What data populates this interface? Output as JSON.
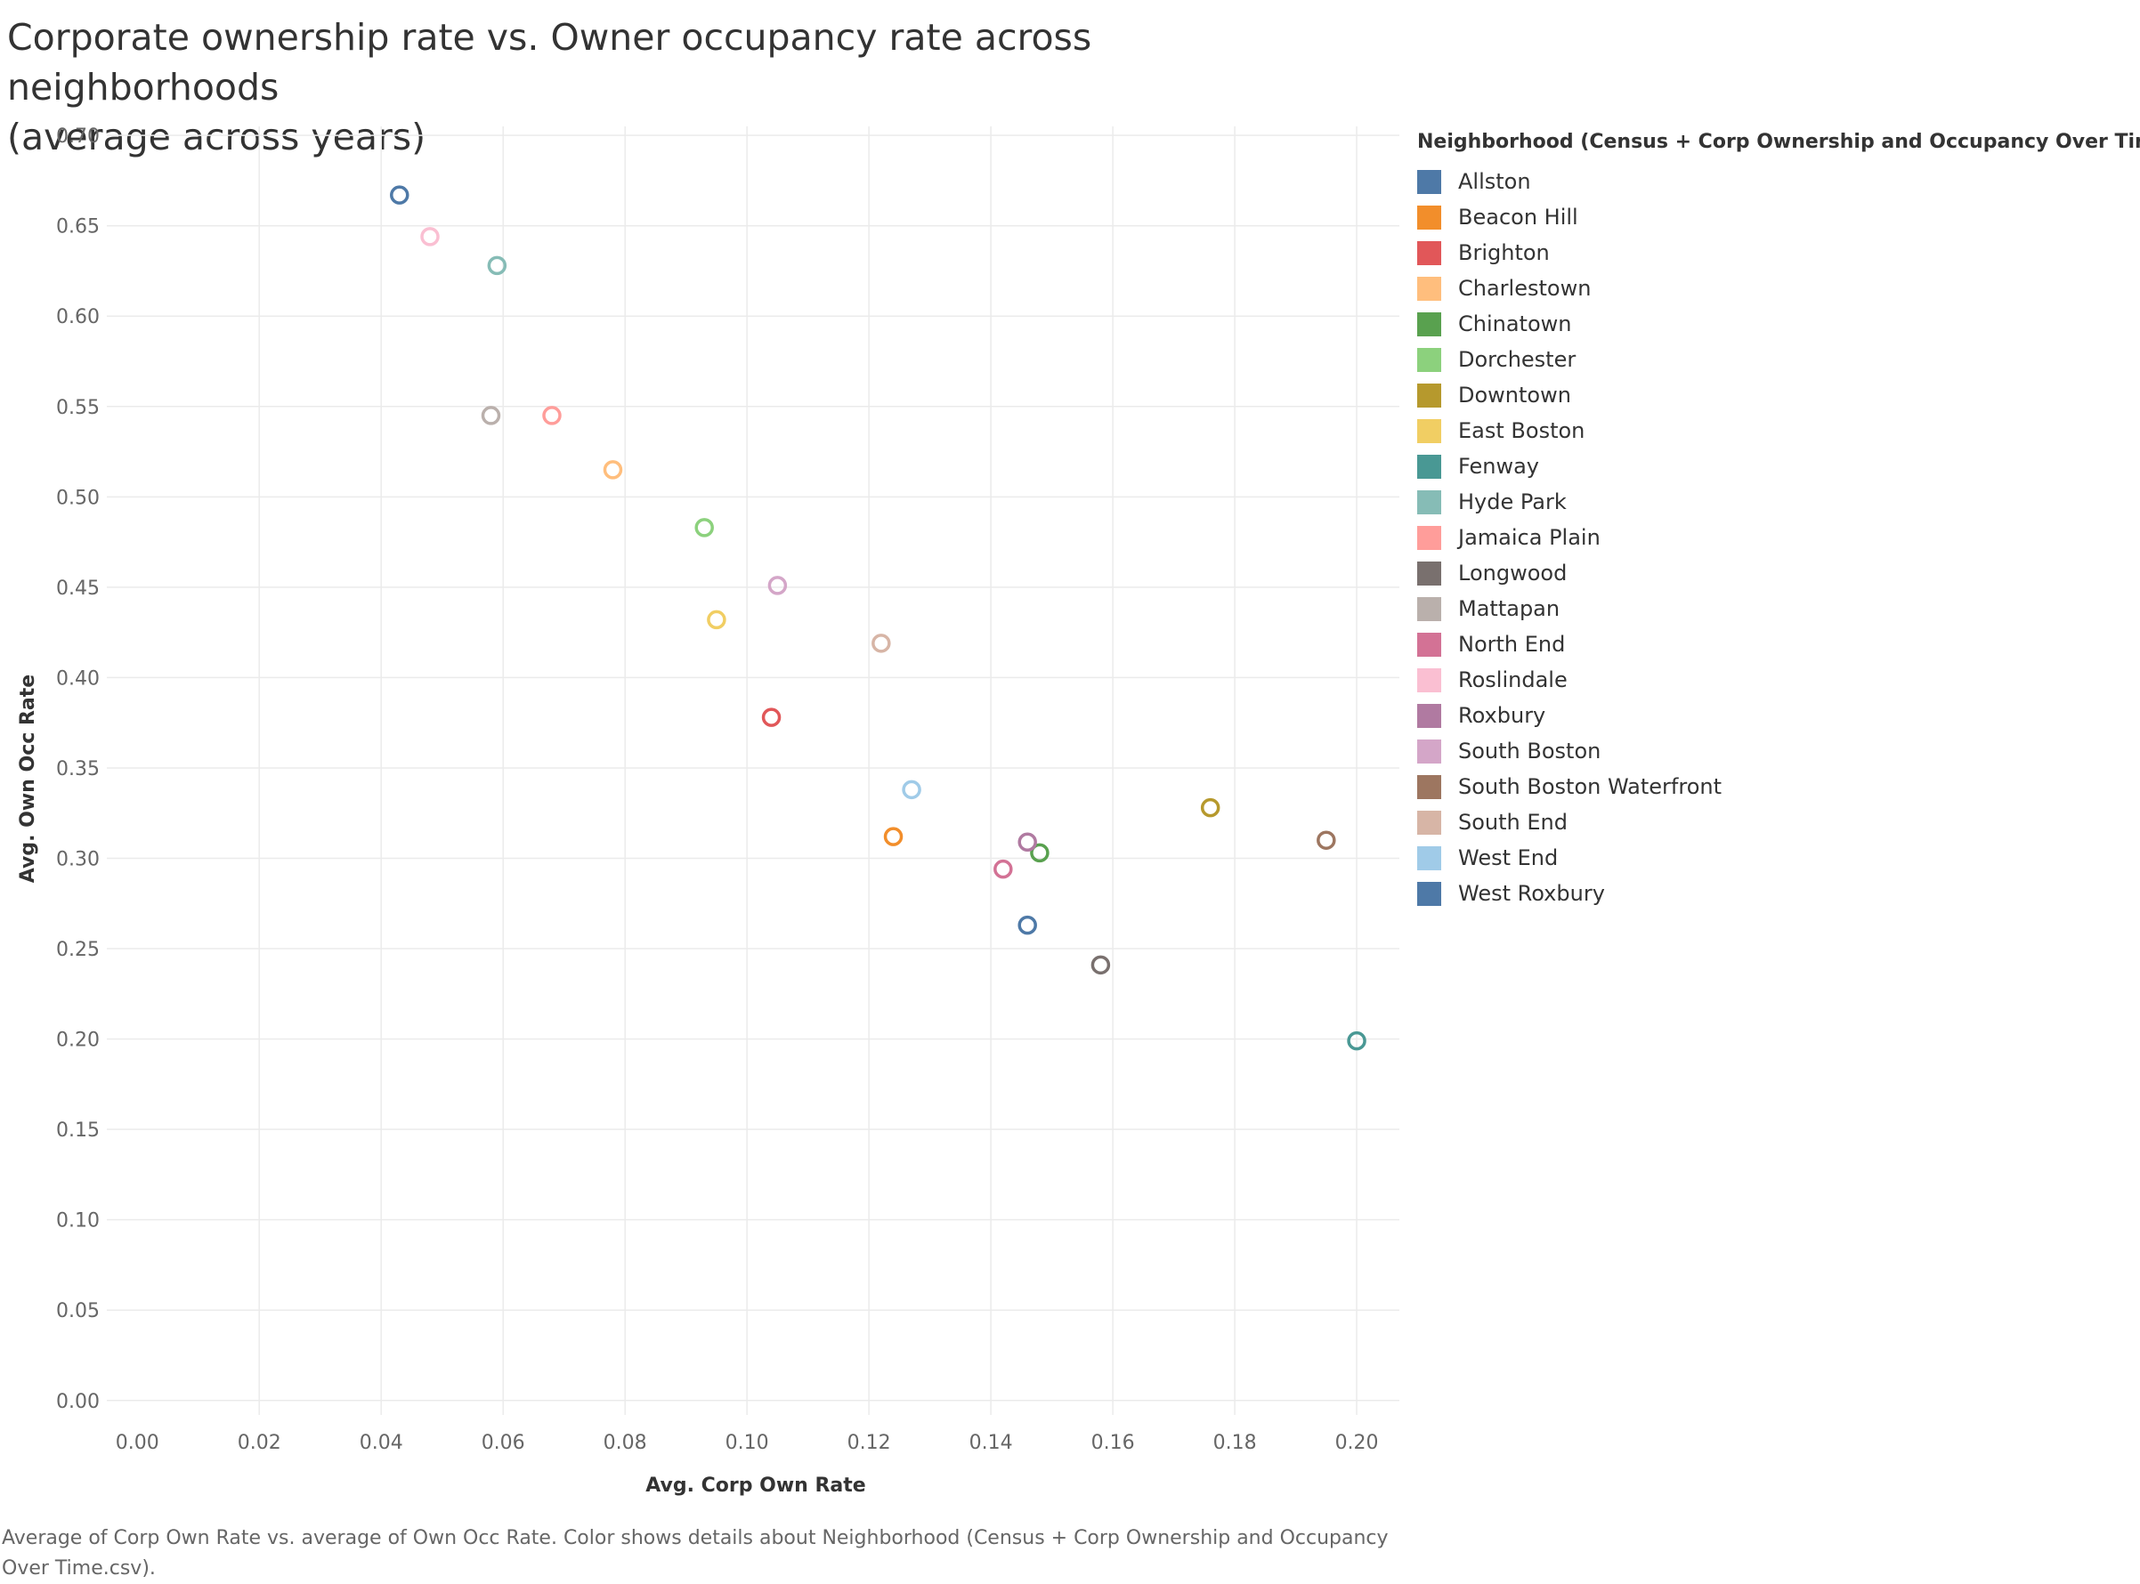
{
  "title_lines": [
    "Corporate ownership rate vs. Owner occupancy rate across neighborhoods",
    "(average across years)"
  ],
  "caption": "Average of Corp Own Rate vs. average of Own Occ Rate.  Color shows details about Neighborhood (Census + Corp Ownership and Occupancy Over Time.csv).",
  "chart_data": {
    "type": "scatter",
    "title": "Corporate ownership rate vs. Owner occupancy rate across neighborhoods (average across years)",
    "xlabel": "Avg. Corp Own Rate",
    "ylabel": "Avg. Own Occ Rate",
    "xlim": [
      -0.005,
      0.207
    ],
    "ylim": [
      -0.008,
      0.705
    ],
    "x_ticks": [
      "0.00",
      "0.02",
      "0.04",
      "0.06",
      "0.08",
      "0.10",
      "0.12",
      "0.14",
      "0.16",
      "0.18",
      "0.20"
    ],
    "y_ticks": [
      "0.00",
      "0.05",
      "0.10",
      "0.15",
      "0.20",
      "0.25",
      "0.30",
      "0.35",
      "0.40",
      "0.45",
      "0.50",
      "0.55",
      "0.60",
      "0.65",
      "0.70"
    ],
    "grid": true,
    "legend_title": "Neighborhood (Census + Corp Ownership and Occupancy Over Time.csv)",
    "legend_position": "right",
    "marker": "hollow-circle",
    "series": [
      {
        "name": "Allston",
        "color": "#4e79a7",
        "x": 0.146,
        "y": 0.263
      },
      {
        "name": "Beacon Hill",
        "color": "#f28e2b",
        "x": 0.124,
        "y": 0.312
      },
      {
        "name": "Brighton",
        "color": "#e15759",
        "x": 0.104,
        "y": 0.378
      },
      {
        "name": "Charlestown",
        "color": "#ffbe7d",
        "x": 0.078,
        "y": 0.515
      },
      {
        "name": "Chinatown",
        "color": "#59a14f",
        "x": 0.148,
        "y": 0.303
      },
      {
        "name": "Dorchester",
        "color": "#8cd17d",
        "x": 0.093,
        "y": 0.483
      },
      {
        "name": "Downtown",
        "color": "#b6992d",
        "x": 0.176,
        "y": 0.328
      },
      {
        "name": "East Boston",
        "color": "#f1ce63",
        "x": 0.095,
        "y": 0.432
      },
      {
        "name": "Fenway",
        "color": "#499894",
        "x": 0.2,
        "y": 0.199
      },
      {
        "name": "Hyde Park",
        "color": "#86bcb6",
        "x": 0.059,
        "y": 0.628
      },
      {
        "name": "Jamaica Plain",
        "color": "#ff9d9a",
        "x": 0.068,
        "y": 0.545
      },
      {
        "name": "Longwood",
        "color": "#79706e",
        "x": 0.158,
        "y": 0.241
      },
      {
        "name": "Mattapan",
        "color": "#bab0ac",
        "x": 0.058,
        "y": 0.545
      },
      {
        "name": "North End",
        "color": "#d37295",
        "x": 0.142,
        "y": 0.294
      },
      {
        "name": "Roslindale",
        "color": "#fabfd2",
        "x": 0.048,
        "y": 0.644
      },
      {
        "name": "Roxbury",
        "color": "#b07aa1",
        "x": 0.146,
        "y": 0.309
      },
      {
        "name": "South Boston",
        "color": "#d4a6c8",
        "x": 0.105,
        "y": 0.451
      },
      {
        "name": "South Boston Waterfront",
        "color": "#9d7660",
        "x": 0.195,
        "y": 0.31
      },
      {
        "name": "South End",
        "color": "#d7b5a6",
        "x": 0.122,
        "y": 0.419
      },
      {
        "name": "West End",
        "color": "#a0cbe8",
        "x": 0.127,
        "y": 0.338
      },
      {
        "name": "West Roxbury",
        "color": "#4e79a7",
        "x": 0.043,
        "y": 0.667
      }
    ]
  }
}
